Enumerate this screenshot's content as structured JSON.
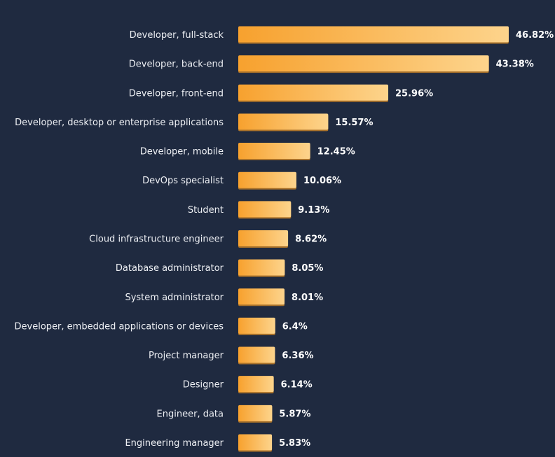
{
  "chart_data": {
    "type": "bar",
    "orientation": "horizontal",
    "title": "",
    "xlabel": "",
    "ylabel": "",
    "xlim": [
      0,
      50
    ],
    "grid": false,
    "legend": "none",
    "categories": [
      "Developer, full-stack",
      "Developer, back-end",
      "Developer, front-end",
      "Developer, desktop or enterprise applications",
      "Developer, mobile",
      "DevOps specialist",
      "Student",
      "Cloud infrastructure engineer",
      "Database administrator",
      "System administrator",
      "Developer, embedded applications or devices",
      "Project manager",
      "Designer",
      "Engineer, data",
      "Engineering manager"
    ],
    "values": [
      46.82,
      43.38,
      25.96,
      15.57,
      12.45,
      10.06,
      9.13,
      8.62,
      8.05,
      8.01,
      6.4,
      6.36,
      6.14,
      5.87,
      5.83
    ],
    "value_labels": [
      "46.82%",
      "43.38%",
      "25.96%",
      "15.57%",
      "12.45%",
      "10.06%",
      "9.13%",
      "8.62%",
      "8.05%",
      "8.01%",
      "6.4%",
      "6.36%",
      "6.14%",
      "5.87%",
      "5.83%"
    ]
  },
  "colors": {
    "background": "#1f2a40",
    "bar_start": "#f7a12e",
    "bar_end": "#fdd48c",
    "bar_shadow": "#a8712a",
    "label": "#eef0f4",
    "value": "#ffffff"
  }
}
